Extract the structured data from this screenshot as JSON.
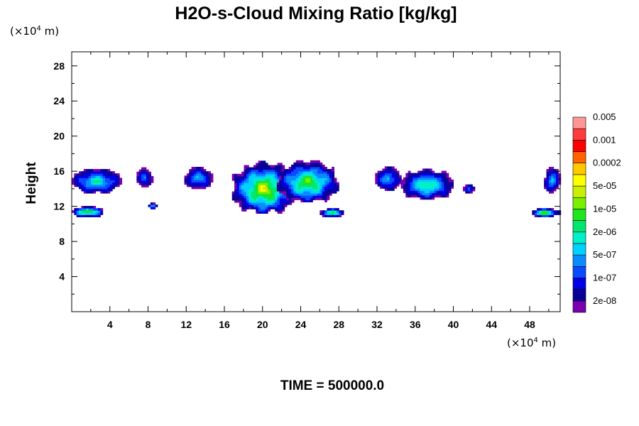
{
  "chart_data": {
    "type": "heatmap",
    "title": "H2O-s-Cloud Mixing Ratio [kg/kg]",
    "ylabel": "Height",
    "x_unit": {
      "prefix": "(×10",
      "exp": "4",
      "suffix": " m)"
    },
    "y_unit": {
      "prefix": "(×10",
      "exp": "4",
      "suffix": " m)"
    },
    "footer": "TIME = 500000.0",
    "xlim": [
      0,
      51.2
    ],
    "ylim": [
      0,
      29.6
    ],
    "x_ticks": [
      "4",
      "8",
      "12",
      "16",
      "20",
      "24",
      "28",
      "32",
      "36",
      "40",
      "44",
      "48"
    ],
    "y_ticks": [
      "4",
      "8",
      "12",
      "16",
      "20",
      "24",
      "28"
    ],
    "x_tick_values": [
      4,
      8,
      12,
      16,
      20,
      24,
      28,
      32,
      36,
      40,
      44,
      48
    ],
    "y_tick_values": [
      4,
      8,
      12,
      16,
      20,
      24,
      28
    ],
    "colorbar": {
      "colors": [
        "#7a00b0",
        "#0a0096",
        "#0000e6",
        "#0a4bff",
        "#0a8cff",
        "#00d2ff",
        "#00f0c8",
        "#00e66e",
        "#1ee61e",
        "#78f000",
        "#c8f000",
        "#ffff00",
        "#ffc800",
        "#ff6400",
        "#ff0000",
        "#ff3c3c",
        "#ff9696"
      ],
      "labels": [
        "2e-08",
        "1e-07",
        "5e-07",
        "2e-06",
        "1e-05",
        "5e-05",
        "0.0002",
        "0.001",
        "0.005"
      ]
    },
    "cloud_regions": [
      {
        "x_range": [
          0,
          5.2
        ],
        "y_range": [
          13.5,
          16.3
        ],
        "max_level": 8
      },
      {
        "x_range": [
          6.8,
          8.4
        ],
        "y_range": [
          14.2,
          16.3
        ],
        "max_level": 5
      },
      {
        "x_range": [
          11.8,
          14.8
        ],
        "y_range": [
          14.0,
          16.5
        ],
        "max_level": 6
      },
      {
        "x_range": [
          16.8,
          23.5
        ],
        "y_range": [
          11.2,
          17.0
        ],
        "max_level": 13
      },
      {
        "x_range": [
          21.5,
          28.0
        ],
        "y_range": [
          12.5,
          17.2
        ],
        "max_level": 11
      },
      {
        "x_range": [
          31.8,
          34.5
        ],
        "y_range": [
          13.8,
          16.5
        ],
        "max_level": 6
      },
      {
        "x_range": [
          34.5,
          40.0
        ],
        "y_range": [
          12.8,
          16.2
        ],
        "max_level": 9
      },
      {
        "x_range": [
          41.0,
          42.2
        ],
        "y_range": [
          13.5,
          14.5
        ],
        "max_level": 4
      },
      {
        "x_range": [
          49.5,
          51.2
        ],
        "y_range": [
          13.5,
          16.5
        ],
        "max_level": 6
      },
      {
        "x_range": [
          0,
          3.4
        ],
        "y_range": [
          10.8,
          12.0
        ],
        "max_level": 11
      },
      {
        "x_range": [
          8.0,
          9.0
        ],
        "y_range": [
          11.7,
          12.4
        ],
        "max_level": 8
      },
      {
        "x_range": [
          26.0,
          28.6
        ],
        "y_range": [
          10.8,
          11.8
        ],
        "max_level": 10
      },
      {
        "x_range": [
          48.0,
          51.2
        ],
        "y_range": [
          10.8,
          11.8
        ],
        "max_level": 11
      }
    ]
  }
}
